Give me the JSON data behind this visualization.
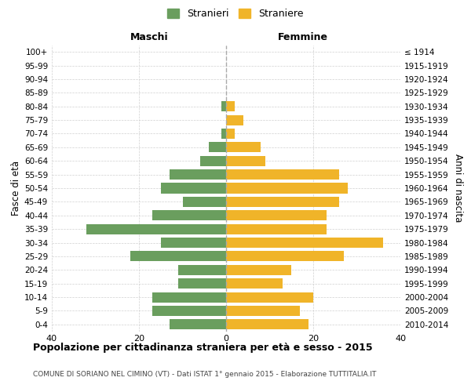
{
  "age_groups": [
    "0-4",
    "5-9",
    "10-14",
    "15-19",
    "20-24",
    "25-29",
    "30-34",
    "35-39",
    "40-44",
    "45-49",
    "50-54",
    "55-59",
    "60-64",
    "65-69",
    "70-74",
    "75-79",
    "80-84",
    "85-89",
    "90-94",
    "95-99",
    "100+"
  ],
  "birth_years": [
    "2010-2014",
    "2005-2009",
    "2000-2004",
    "1995-1999",
    "1990-1994",
    "1985-1989",
    "1980-1984",
    "1975-1979",
    "1970-1974",
    "1965-1969",
    "1960-1964",
    "1955-1959",
    "1950-1954",
    "1945-1949",
    "1940-1944",
    "1935-1939",
    "1930-1934",
    "1925-1929",
    "1920-1924",
    "1915-1919",
    "≤ 1914"
  ],
  "maschi": [
    13,
    17,
    17,
    11,
    11,
    22,
    15,
    32,
    17,
    10,
    15,
    13,
    6,
    4,
    1,
    0,
    1,
    0,
    0,
    0,
    0
  ],
  "femmine": [
    19,
    17,
    20,
    13,
    15,
    27,
    36,
    23,
    23,
    26,
    28,
    26,
    9,
    8,
    2,
    4,
    2,
    0,
    0,
    0,
    0
  ],
  "male_color": "#6a9e5e",
  "female_color": "#f0b429",
  "background_color": "#ffffff",
  "grid_color": "#cccccc",
  "title": "Popolazione per cittadinanza straniera per età e sesso - 2015",
  "subtitle": "COMUNE DI SORIANO NEL CIMINO (VT) - Dati ISTAT 1° gennaio 2015 - Elaborazione TUTTITALIA.IT",
  "ylabel_left": "Fasce di età",
  "ylabel_right": "Anni di nascita",
  "xlabel_left": "Maschi",
  "xlabel_right": "Femmine",
  "legend_male": "Stranieri",
  "legend_female": "Straniere",
  "xlim": 40,
  "bar_height": 0.75
}
